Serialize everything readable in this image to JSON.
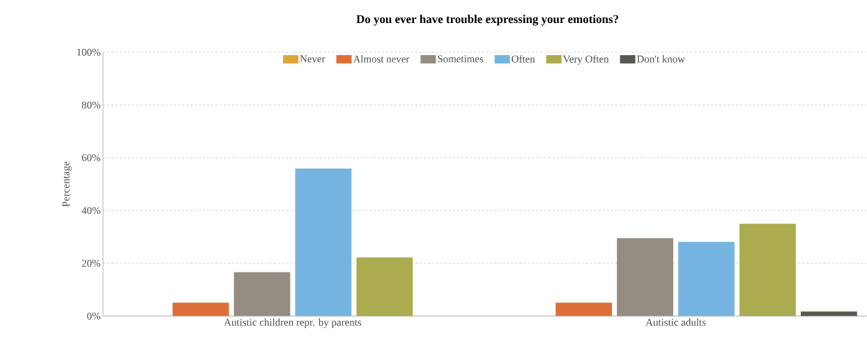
{
  "chart_data": {
    "type": "bar",
    "title": "**Do you ever have trouble expressing your emotions?**",
    "ylabel": "Percentage",
    "categories": [
      "Autistic children repr. by parents",
      "Autistic adults"
    ],
    "series": [
      {
        "name": "Never",
        "color": "#e0a53a",
        "values": [
          0,
          0
        ]
      },
      {
        "name": "Almost never",
        "color": "#de6e37",
        "values": [
          5.1,
          5.1
        ]
      },
      {
        "name": "Sometimes",
        "color": "#958c82",
        "values": [
          16.6,
          29.5
        ]
      },
      {
        "name": "Often",
        "color": "#75b4e0",
        "values": [
          55.9,
          28.1
        ]
      },
      {
        "name": "Very Often",
        "color": "#abab4f",
        "values": [
          22.2,
          35.0
        ]
      },
      {
        "name": "Don't know",
        "color": "#5a5750",
        "values": [
          0,
          1.7
        ]
      }
    ],
    "ylim": [
      0,
      100
    ],
    "yticks": [
      {
        "value": 0,
        "label": "0%"
      },
      {
        "value": 20,
        "label": "20%"
      },
      {
        "value": 40,
        "label": "40%"
      },
      {
        "value": 60,
        "label": "60%"
      },
      {
        "value": 80,
        "label": "80%"
      },
      {
        "value": 100,
        "label": "100%"
      }
    ],
    "grid": "y",
    "legend": "top"
  }
}
